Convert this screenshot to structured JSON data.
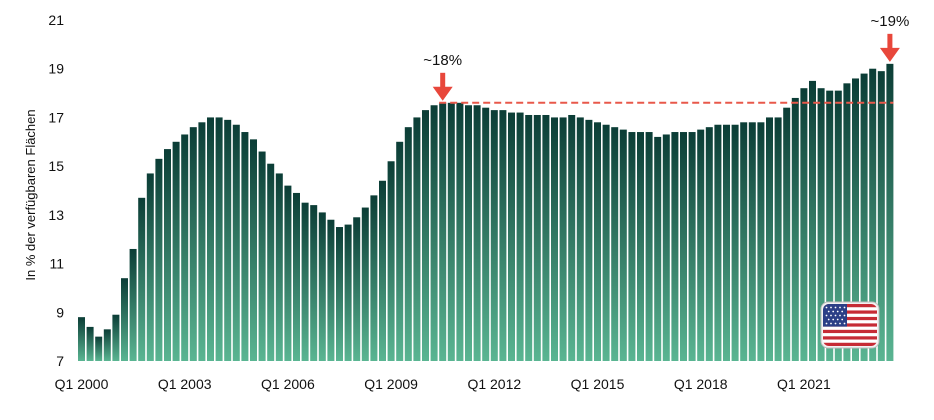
{
  "chart_data": {
    "type": "bar",
    "ylabel": "In % der verfügbaren Flächen",
    "ylim": [
      7,
      21
    ],
    "yticks": [
      7,
      9,
      11,
      13,
      15,
      17,
      19,
      21
    ],
    "xtick_labels": [
      {
        "label": "Q1 2000",
        "index": 0
      },
      {
        "label": "Q1 2003",
        "index": 12
      },
      {
        "label": "Q1 2006",
        "index": 24
      },
      {
        "label": "Q1 2009",
        "index": 36
      },
      {
        "label": "Q1 2012",
        "index": 48
      },
      {
        "label": "Q1 2015",
        "index": 60
      },
      {
        "label": "Q1 2018",
        "index": 72
      },
      {
        "label": "Q1 2021",
        "index": 84
      }
    ],
    "values": [
      8.8,
      8.4,
      8.0,
      8.3,
      8.9,
      10.4,
      11.6,
      13.7,
      14.7,
      15.3,
      15.7,
      16.0,
      16.3,
      16.6,
      16.8,
      17.0,
      17.0,
      16.9,
      16.7,
      16.4,
      16.1,
      15.6,
      15.1,
      14.7,
      14.2,
      13.9,
      13.5,
      13.4,
      13.1,
      12.8,
      12.5,
      12.6,
      12.9,
      13.3,
      13.8,
      14.4,
      15.2,
      16.0,
      16.6,
      17.0,
      17.3,
      17.5,
      17.6,
      17.6,
      17.6,
      17.5,
      17.5,
      17.4,
      17.3,
      17.3,
      17.2,
      17.2,
      17.1,
      17.1,
      17.1,
      17.0,
      17.0,
      17.1,
      17.0,
      16.9,
      16.8,
      16.7,
      16.6,
      16.5,
      16.4,
      16.4,
      16.4,
      16.2,
      16.3,
      16.4,
      16.4,
      16.4,
      16.5,
      16.6,
      16.7,
      16.7,
      16.7,
      16.8,
      16.8,
      16.8,
      17.0,
      17.0,
      17.4,
      17.8,
      18.2,
      18.5,
      18.2,
      18.1,
      18.1,
      18.4,
      18.6,
      18.8,
      19.0,
      18.9,
      19.2
    ],
    "reference_line": {
      "value": 17.6,
      "from_index": 42
    },
    "annotations": [
      {
        "text": "~18%",
        "index": 42
      },
      {
        "text": "~19%",
        "index": 94
      }
    ],
    "colors": {
      "bar_top": "#0b3d36",
      "bar_bottom": "#5ab592",
      "reference_line": "#e8584a",
      "arrow": "#e8473b"
    },
    "flag": "us-flag"
  }
}
